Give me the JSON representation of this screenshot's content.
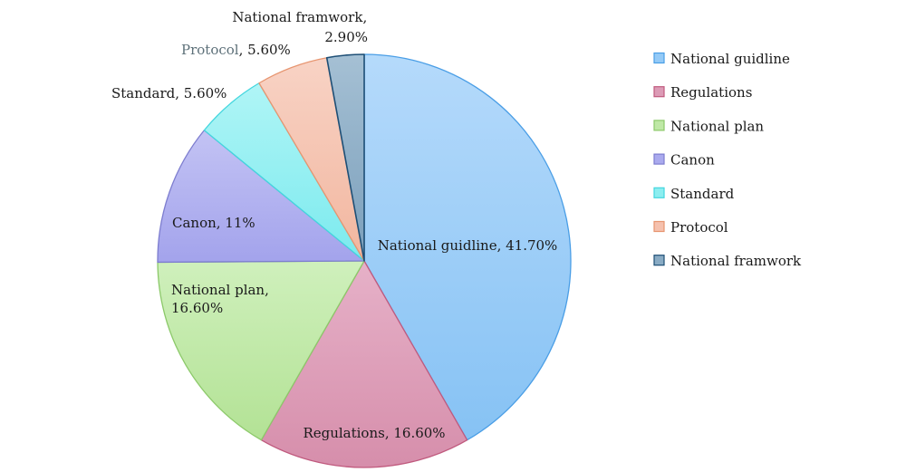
{
  "chart_data": {
    "type": "pie",
    "title": "",
    "slices": [
      {
        "name": "National guidline",
        "value": 41.7,
        "label": "National guidline, 41.70%",
        "fill": "#94caf7",
        "stroke": "#4a9ee6"
      },
      {
        "name": "Regulations",
        "value": 16.6,
        "label": "Regulations, 16.60%",
        "fill": "#dc9bb6",
        "stroke": "#c05a7e"
      },
      {
        "name": "National plan",
        "value": 16.6,
        "label": "National plan, 16.60%",
        "fill": "#bfe8a6",
        "stroke": "#8cc96a"
      },
      {
        "name": "Canon",
        "value": 11,
        "label": "Canon, 11%",
        "fill": "#aaaaee",
        "stroke": "#7d7dcf"
      },
      {
        "name": "Standard",
        "value": 5.6,
        "label": "Standard, 5.60%",
        "fill": "#8ceef0",
        "stroke": "#43d6de"
      },
      {
        "name": "Protocol",
        "value": 5.6,
        "label": "Protocol, 5.60%",
        "fill": "#f5c1ae",
        "stroke": "#e79570"
      },
      {
        "name": "National framwork",
        "value": 2.9,
        "label": "National framwork, 2.90%",
        "fill": "#89abc4",
        "stroke": "#1e4f76"
      }
    ],
    "legend": {
      "placement": "right",
      "items": [
        "National guidline",
        "Regulations",
        "National plan",
        "Canon",
        "Standard",
        "Protocol",
        "National framwork"
      ]
    }
  }
}
